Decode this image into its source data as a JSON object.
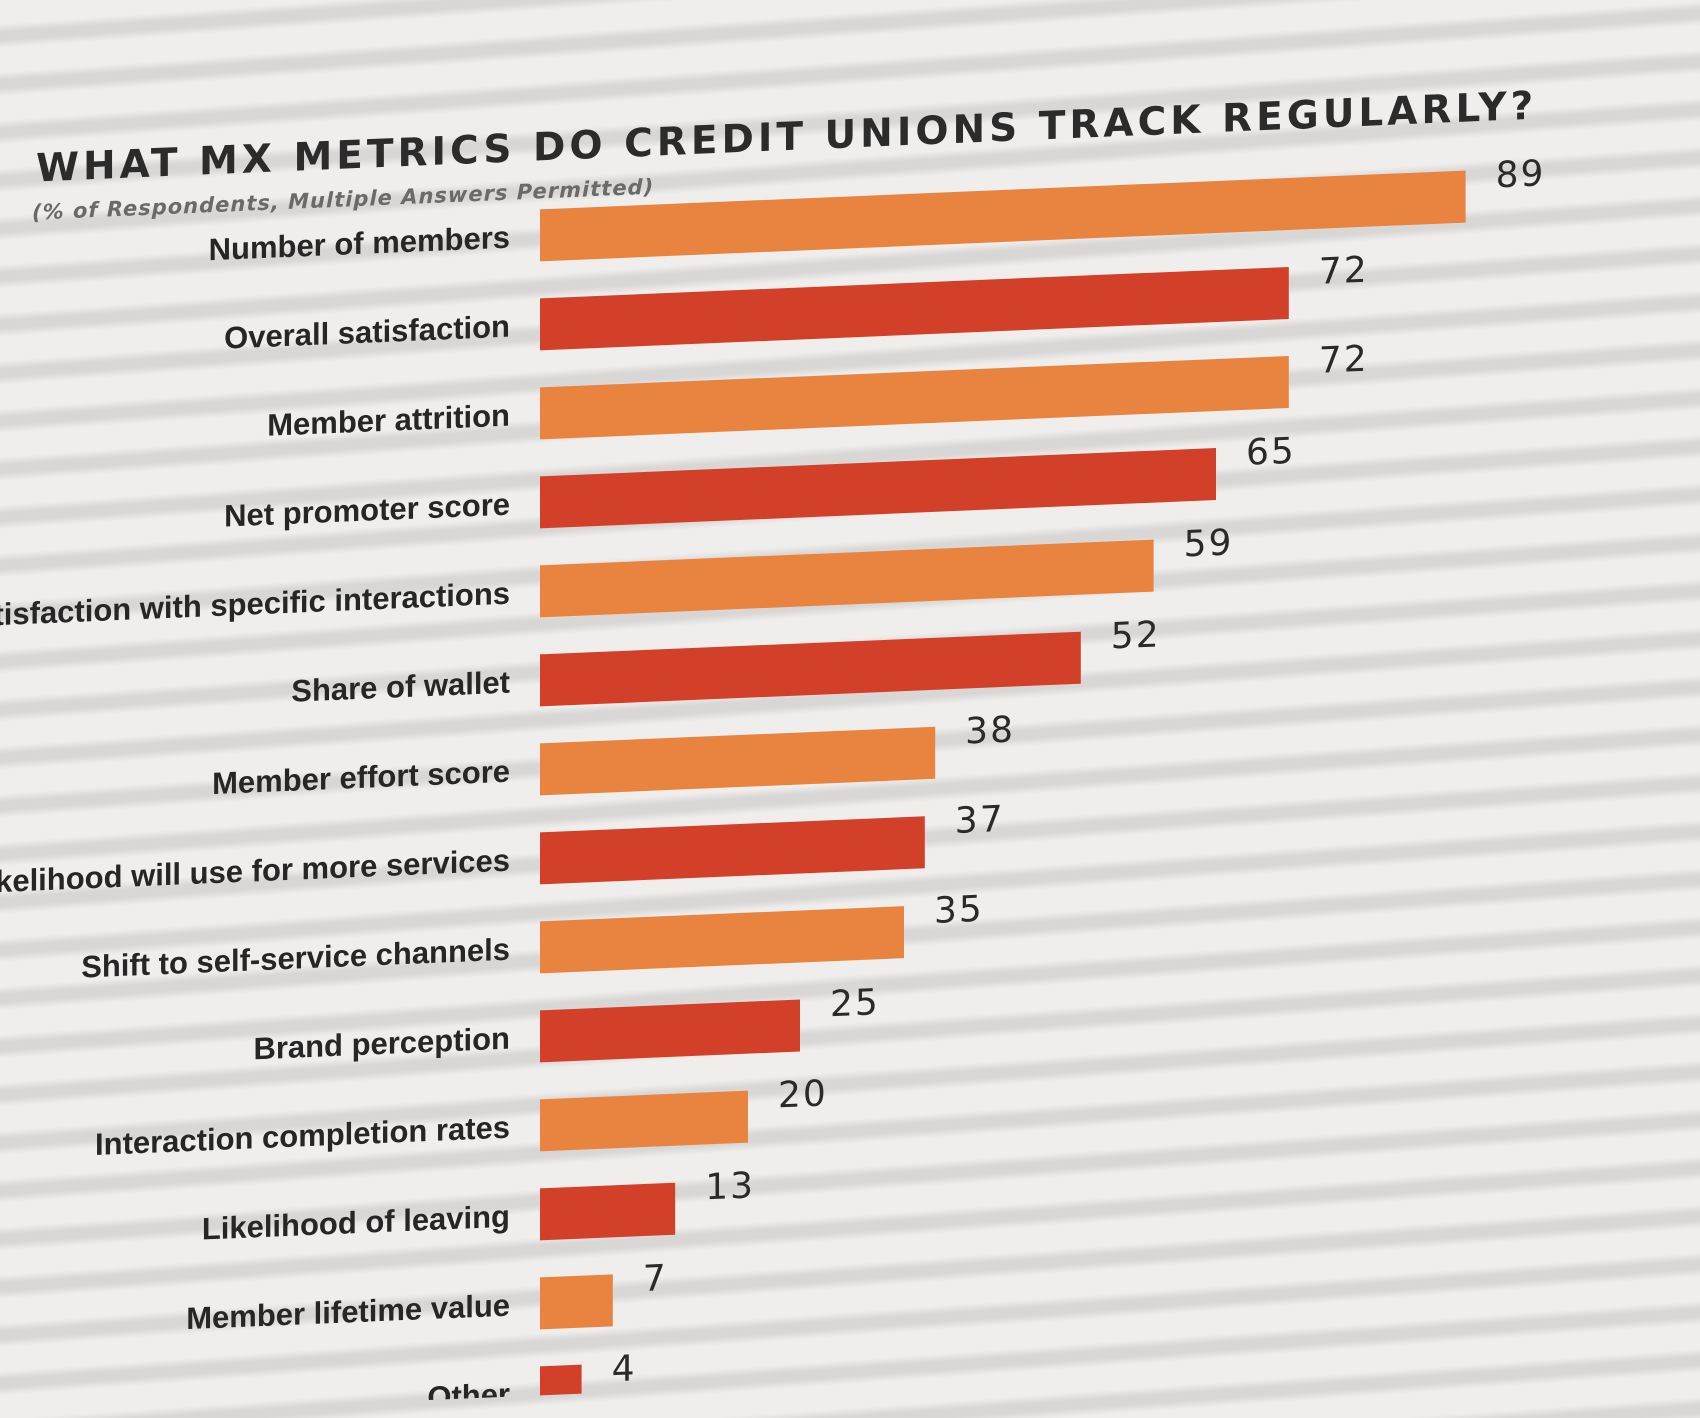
{
  "chart_data": {
    "type": "bar",
    "orientation": "horizontal",
    "title": "WHAT MX METRICS DO CREDIT UNIONS TRACK REGULARLY?",
    "subtitle": "(% of Respondents, Multiple Answers Permitted)",
    "xlabel": "",
    "ylabel": "",
    "xlim": [
      0,
      100
    ],
    "grid": false,
    "legend": "none",
    "categories": [
      "Number of members",
      "Overall satisfaction",
      "Member attrition",
      "Net promoter score",
      "Satisfaction with specific interactions",
      "Share of wallet",
      "Member effort score",
      "Likelihood will use for more services",
      "Shift to self-service channels",
      "Brand perception",
      "Interaction completion rates",
      "Likelihood of leaving",
      "Member lifetime value",
      "Other"
    ],
    "values": [
      89,
      72,
      72,
      65,
      59,
      52,
      38,
      37,
      35,
      25,
      20,
      13,
      7,
      4
    ],
    "value_labels": [
      "89",
      "72",
      "72",
      "65",
      "59",
      "52",
      "38",
      "37",
      "35",
      "25",
      "20",
      "13",
      "7",
      "4"
    ],
    "colors": {
      "orange": "#e8843f",
      "red": "#d2402a",
      "pattern": [
        "orange",
        "red"
      ]
    }
  }
}
